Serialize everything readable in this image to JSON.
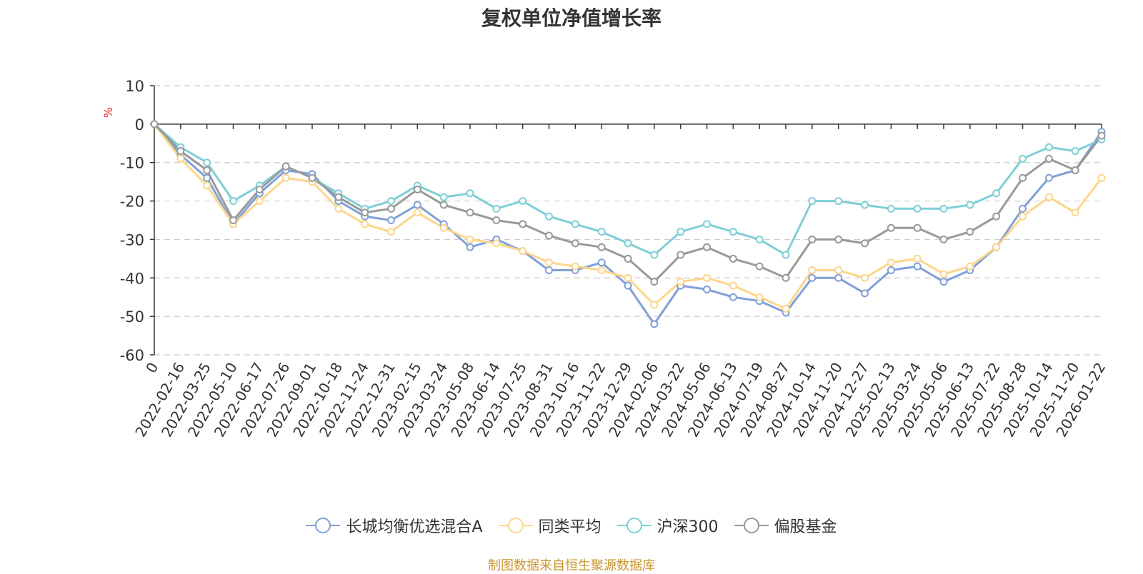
{
  "chart_data": {
    "type": "line",
    "title": "复权单位净值增长率",
    "ylabel": "%",
    "ylim": [
      -60,
      10
    ],
    "yticks": [
      10,
      0,
      -10,
      -20,
      -30,
      -40,
      -50,
      -60
    ],
    "x_origin_label": "0",
    "categories": [
      "2022-02-16",
      "2022-03-25",
      "2022-05-10",
      "2022-06-17",
      "2022-07-26",
      "2022-09-01",
      "2022-10-18",
      "2022-11-24",
      "2022-12-31",
      "2023-02-15",
      "2023-03-24",
      "2023-05-08",
      "2023-06-14",
      "2023-07-25",
      "2023-08-31",
      "2023-10-16",
      "2023-11-22",
      "2023-12-29",
      "2024-02-06",
      "2024-03-22",
      "2024-05-06",
      "2024-06-13",
      "2024-07-19",
      "2024-08-27",
      "2024-10-14",
      "2024-11-20",
      "2024-12-27",
      "2025-02-13",
      "2025-03-24",
      "2025-05-06",
      "2025-06-13",
      "2025-07-22",
      "2025-08-28",
      "2025-10-14",
      "2025-11-20",
      "2026-01-22"
    ],
    "series": [
      {
        "name": "长城均衡优选混合A",
        "color": "#7fa0d8",
        "values": [
          -8,
          -14,
          -26,
          -18,
          -12,
          -13,
          -20,
          -24,
          -25,
          -21,
          -26,
          -32,
          -30,
          -33,
          -38,
          -38,
          -36,
          -42,
          -52,
          -42,
          -43,
          -45,
          -46,
          -49,
          -40,
          -40,
          -44,
          -38,
          -37,
          -41,
          -38,
          -32,
          -22,
          -14,
          -12,
          -2
        ]
      },
      {
        "name": "同类平均",
        "color": "#fcd68a",
        "values": [
          -9,
          -16,
          -26,
          -20,
          -14,
          -15,
          -22,
          -26,
          -28,
          -23,
          -27,
          -30,
          -31,
          -33,
          -36,
          -37,
          -38,
          -40,
          -47,
          -41,
          -40,
          -42,
          -45,
          -48,
          -38,
          -38,
          -40,
          -36,
          -35,
          -39,
          -37,
          -32,
          -24,
          -19,
          -23,
          -14
        ]
      },
      {
        "name": "沪深300",
        "color": "#7ecfd6",
        "values": [
          -6,
          -10,
          -20,
          -16,
          -11,
          -14,
          -18,
          -22,
          -20,
          -16,
          -19,
          -18,
          -22,
          -20,
          -24,
          -26,
          -28,
          -31,
          -34,
          -28,
          -26,
          -28,
          -30,
          -34,
          -20,
          -20,
          -21,
          -22,
          -22,
          -22,
          -21,
          -18,
          -9,
          -6,
          -7,
          -4
        ]
      },
      {
        "name": "偏股基金",
        "color": "#999999",
        "values": [
          -7,
          -12,
          -25,
          -17,
          -11,
          -14,
          -19,
          -23,
          -22,
          -17,
          -21,
          -23,
          -25,
          -26,
          -29,
          -31,
          -32,
          -35,
          -41,
          -34,
          -32,
          -35,
          -37,
          -40,
          -30,
          -30,
          -31,
          -27,
          -27,
          -30,
          -28,
          -24,
          -14,
          -9,
          -12,
          -3
        ]
      }
    ]
  },
  "source": "制图数据来自恒生聚源数据库"
}
